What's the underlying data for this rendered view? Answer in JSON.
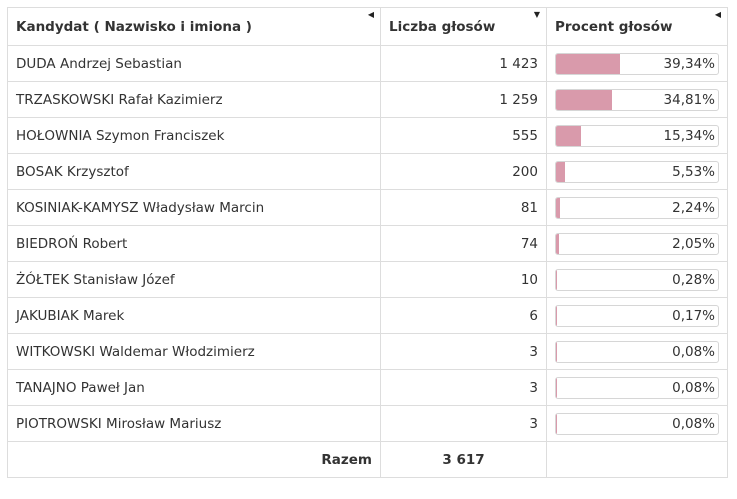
{
  "header": {
    "candidate_label": "Kandydat ( Nazwisko i imiona )",
    "votes_label": "Liczba głosów",
    "percent_label": "Procent głosów",
    "candidate_sort_icon": "triangle-left-icon",
    "votes_sort_icon": "triangle-down-icon",
    "percent_sort_icon": "triangle-left-icon"
  },
  "accent_color": "#d99aab",
  "rows": [
    {
      "name": "DUDA Andrzej Sebastian",
      "votes": "1 423",
      "percent": "39,34%",
      "share": 39.34
    },
    {
      "name": "TRZASKOWSKI Rafał Kazimierz",
      "votes": "1 259",
      "percent": "34,81%",
      "share": 34.81
    },
    {
      "name": "HOŁOWNIA Szymon Franciszek",
      "votes": "555",
      "percent": "15,34%",
      "share": 15.34
    },
    {
      "name": "BOSAK Krzysztof",
      "votes": "200",
      "percent": "5,53%",
      "share": 5.53
    },
    {
      "name": "KOSINIAK-KAMYSZ Władysław Marcin",
      "votes": "81",
      "percent": "2,24%",
      "share": 2.24
    },
    {
      "name": "BIEDROŃ Robert",
      "votes": "74",
      "percent": "2,05%",
      "share": 2.05
    },
    {
      "name": "ŻÓŁTEK Stanisław Józef",
      "votes": "10",
      "percent": "0,28%",
      "share": 0.28
    },
    {
      "name": "JAKUBIAK Marek",
      "votes": "6",
      "percent": "0,17%",
      "share": 0.17
    },
    {
      "name": "WITKOWSKI Waldemar Włodzimierz",
      "votes": "3",
      "percent": "0,08%",
      "share": 0.08
    },
    {
      "name": "TANAJNO Paweł Jan",
      "votes": "3",
      "percent": "0,08%",
      "share": 0.08
    },
    {
      "name": "PIOTROWSKI Mirosław Mariusz",
      "votes": "3",
      "percent": "0,08%",
      "share": 0.08
    }
  ],
  "footer": {
    "total_label": "Razem",
    "total_votes": "3 617"
  }
}
